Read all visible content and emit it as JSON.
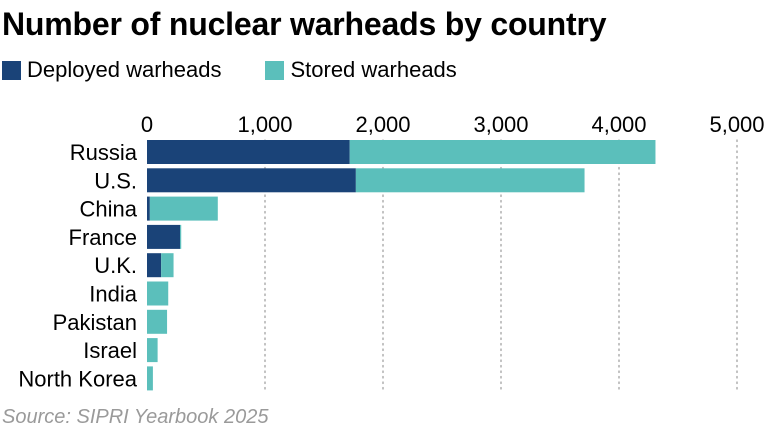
{
  "title": "Number of nuclear warheads by country",
  "source": "Source: SIPRI Yearbook 2025",
  "colors": {
    "deployed": "#1a4378",
    "stored": "#5bbfbb",
    "grid": "#9a9a9a",
    "source_text": "#9a9a9a"
  },
  "chart_data": {
    "type": "bar",
    "orientation": "horizontal",
    "stacked": true,
    "title": "Number of nuclear warheads by country",
    "categories": [
      "Russia",
      "U.S.",
      "China",
      "France",
      "U.K.",
      "India",
      "Pakistan",
      "Israel",
      "North Korea"
    ],
    "series": [
      {
        "name": "Deployed warheads",
        "color": "#1a4378",
        "values": [
          1718,
          1770,
          24,
          280,
          120,
          0,
          0,
          0,
          0
        ]
      },
      {
        "name": "Stored warheads",
        "color": "#5bbfbb",
        "values": [
          2591,
          1938,
          576,
          10,
          105,
          180,
          170,
          90,
          50
        ]
      }
    ],
    "xlim": [
      0,
      5000
    ],
    "ticks": [
      0,
      1000,
      2000,
      3000,
      4000,
      5000
    ],
    "tick_labels": [
      "0",
      "1,000",
      "2,000",
      "3,000",
      "4,000",
      "5,000"
    ],
    "grid": true,
    "legend_position": "top-left"
  }
}
